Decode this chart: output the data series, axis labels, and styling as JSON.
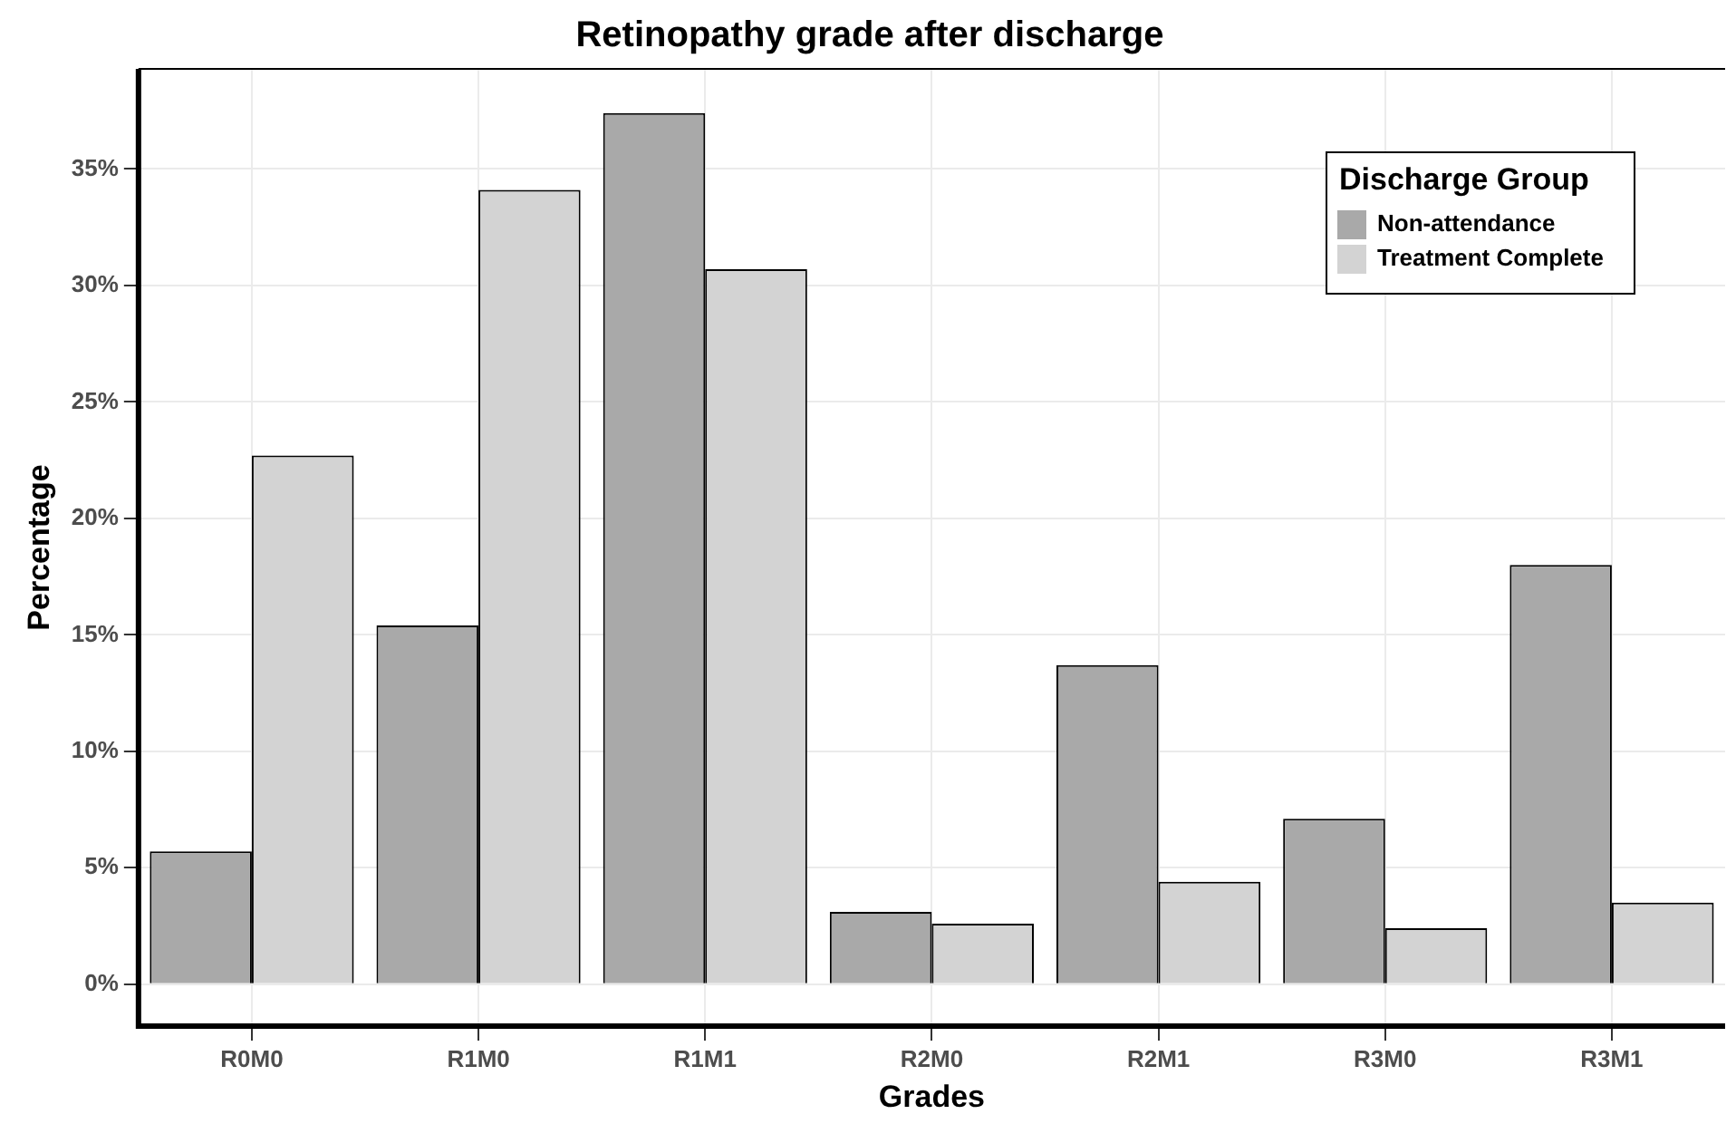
{
  "chart_data": {
    "type": "bar",
    "title": "Retinopathy grade after discharge",
    "xlabel": "Grades",
    "ylabel": "Percentage",
    "legend_title": "Discharge Group",
    "categories": [
      "R0M0",
      "R1M0",
      "R1M1",
      "R2M0",
      "R2M1",
      "R3M0",
      "R3M1"
    ],
    "series": [
      {
        "name": "Non-attendance",
        "color": "#a9a9a9",
        "values": [
          5.7,
          15.4,
          37.4,
          3.1,
          13.7,
          7.1,
          18.0
        ]
      },
      {
        "name": "Treatment Complete",
        "color": "#d3d3d3",
        "values": [
          22.7,
          34.1,
          30.7,
          2.6,
          4.4,
          2.4,
          3.5
        ]
      }
    ],
    "ylim": [
      -1.8,
      39.3
    ],
    "yticks": [
      {
        "value": 0,
        "label": "0%"
      },
      {
        "value": 5,
        "label": "5%"
      },
      {
        "value": 10,
        "label": "10%"
      },
      {
        "value": 15,
        "label": "15%"
      },
      {
        "value": 20,
        "label": "20%"
      },
      {
        "value": 25,
        "label": "25%"
      },
      {
        "value": 30,
        "label": "30%"
      },
      {
        "value": 35,
        "label": "35%"
      }
    ],
    "grid": true,
    "legend": "top right"
  }
}
